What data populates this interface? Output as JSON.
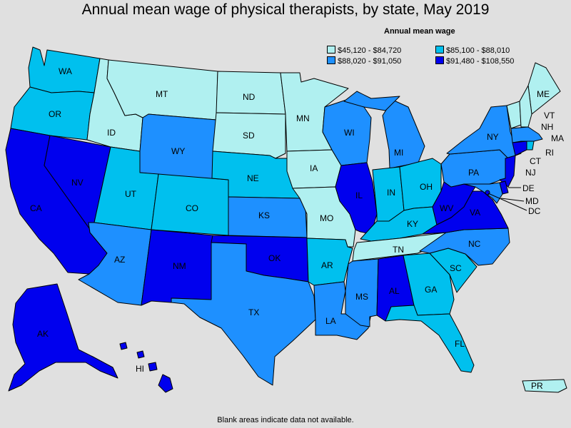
{
  "title": "Annual mean wage of physical therapists, by state, May 2019",
  "legend": {
    "title": "Annual mean wage",
    "items": [
      {
        "label": "$45,120 - $84,720",
        "color": "#b0f0f0"
      },
      {
        "label": "$85,100 - $88,010",
        "color": "#00c0ee"
      },
      {
        "label": "$88,020 - $91,050",
        "color": "#1e90ff"
      },
      {
        "label": "$91,480 - $108,550",
        "color": "#0000ee"
      }
    ]
  },
  "states": [
    {
      "abbr": "WA",
      "class": 1
    },
    {
      "abbr": "OR",
      "class": 1
    },
    {
      "abbr": "CA",
      "class": 3
    },
    {
      "abbr": "NV",
      "class": 3
    },
    {
      "abbr": "ID",
      "class": 0
    },
    {
      "abbr": "MT",
      "class": 0
    },
    {
      "abbr": "WY",
      "class": 2
    },
    {
      "abbr": "UT",
      "class": 1
    },
    {
      "abbr": "AZ",
      "class": 2
    },
    {
      "abbr": "CO",
      "class": 1
    },
    {
      "abbr": "NM",
      "class": 3
    },
    {
      "abbr": "ND",
      "class": 0
    },
    {
      "abbr": "SD",
      "class": 0
    },
    {
      "abbr": "NE",
      "class": 1
    },
    {
      "abbr": "KS",
      "class": 2
    },
    {
      "abbr": "OK",
      "class": 3
    },
    {
      "abbr": "TX",
      "class": 2
    },
    {
      "abbr": "MN",
      "class": 0
    },
    {
      "abbr": "IA",
      "class": 0
    },
    {
      "abbr": "MO",
      "class": 0
    },
    {
      "abbr": "AR",
      "class": 1
    },
    {
      "abbr": "LA",
      "class": 2
    },
    {
      "abbr": "WI",
      "class": 2
    },
    {
      "abbr": "IL",
      "class": 3
    },
    {
      "abbr": "MI",
      "class": 2
    },
    {
      "abbr": "IN",
      "class": 1
    },
    {
      "abbr": "OH",
      "class": 1
    },
    {
      "abbr": "KY",
      "class": 1
    },
    {
      "abbr": "TN",
      "class": 0
    },
    {
      "abbr": "MS",
      "class": 2
    },
    {
      "abbr": "AL",
      "class": 3
    },
    {
      "abbr": "GA",
      "class": 1
    },
    {
      "abbr": "FL",
      "class": 1
    },
    {
      "abbr": "SC",
      "class": 1
    },
    {
      "abbr": "NC",
      "class": 2
    },
    {
      "abbr": "VA",
      "class": 3
    },
    {
      "abbr": "WV",
      "class": 3
    },
    {
      "abbr": "PA",
      "class": 2
    },
    {
      "abbr": "NY",
      "class": 2
    },
    {
      "abbr": "ME",
      "class": 0
    },
    {
      "abbr": "VT",
      "class": 0
    },
    {
      "abbr": "NH",
      "class": 0
    },
    {
      "abbr": "MA",
      "class": 2
    },
    {
      "abbr": "RI",
      "class": 1
    },
    {
      "abbr": "CT",
      "class": 3
    },
    {
      "abbr": "NJ",
      "class": 3
    },
    {
      "abbr": "DE",
      "class": 3
    },
    {
      "abbr": "MD",
      "class": 2
    },
    {
      "abbr": "DC",
      "class": 3
    },
    {
      "abbr": "AK",
      "class": 3
    },
    {
      "abbr": "HI",
      "class": 3
    },
    {
      "abbr": "PR",
      "class": 0
    }
  ],
  "footnote": "Blank areas indicate data not available."
}
